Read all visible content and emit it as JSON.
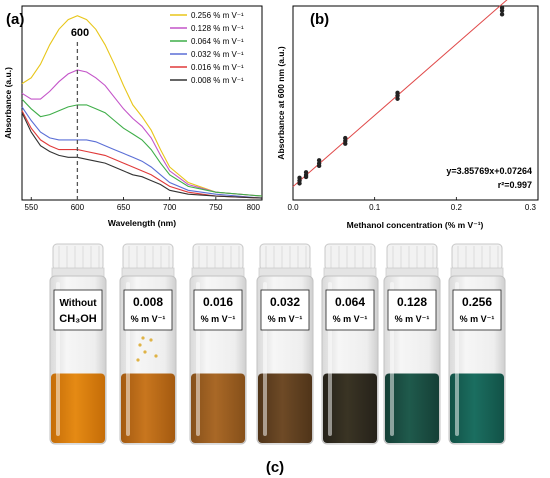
{
  "panel_labels": {
    "a": "(a)",
    "b": "(b)",
    "c": "(c)"
  },
  "colors": {
    "series": [
      "#e8c61a",
      "#c455c9",
      "#3fae49",
      "#5b6fd6",
      "#e03a3a",
      "#333333"
    ],
    "fit_line": "#e04a4a",
    "points": "#222222"
  },
  "chart_data": [
    {
      "type": "line",
      "xlabel": "Wavelength (nm)",
      "ylabel": "Absorbance (a.u.)",
      "xlim": [
        540,
        800
      ],
      "xticks": [
        "550",
        "600",
        "650",
        "700",
        "750",
        "800"
      ],
      "ylim": [
        0,
        1
      ],
      "y_ticks_shown": false,
      "grid": false,
      "legend_position": "top-right",
      "annotation": {
        "text": "600",
        "x": 600,
        "style": "vertical dashed line"
      },
      "x": [
        540,
        550,
        560,
        570,
        580,
        590,
        600,
        610,
        620,
        630,
        640,
        650,
        660,
        670,
        680,
        690,
        700,
        720,
        750,
        800
      ],
      "series": [
        {
          "name": "0.256 % m V⁻¹",
          "values": [
            0.6,
            0.63,
            0.7,
            0.8,
            0.88,
            0.93,
            0.95,
            0.93,
            0.88,
            0.8,
            0.7,
            0.59,
            0.49,
            0.43,
            0.36,
            0.26,
            0.17,
            0.09,
            0.04,
            0.02
          ]
        },
        {
          "name": "0.128 % m V⁻¹",
          "values": [
            0.55,
            0.52,
            0.52,
            0.56,
            0.61,
            0.65,
            0.67,
            0.66,
            0.63,
            0.59,
            0.53,
            0.47,
            0.42,
            0.38,
            0.32,
            0.23,
            0.15,
            0.08,
            0.04,
            0.02
          ]
        },
        {
          "name": "0.064 % m V⁻¹",
          "values": [
            0.52,
            0.47,
            0.43,
            0.44,
            0.46,
            0.48,
            0.49,
            0.49,
            0.47,
            0.45,
            0.41,
            0.37,
            0.34,
            0.31,
            0.26,
            0.19,
            0.13,
            0.07,
            0.04,
            0.02
          ]
        },
        {
          "name": "0.032 % m V⁻¹",
          "values": [
            0.48,
            0.41,
            0.35,
            0.32,
            0.31,
            0.31,
            0.31,
            0.31,
            0.3,
            0.28,
            0.26,
            0.24,
            0.22,
            0.2,
            0.17,
            0.13,
            0.09,
            0.05,
            0.03,
            0.01
          ]
        },
        {
          "name": "0.016 % m V⁻¹",
          "values": [
            0.46,
            0.37,
            0.31,
            0.28,
            0.26,
            0.26,
            0.26,
            0.25,
            0.24,
            0.23,
            0.21,
            0.19,
            0.17,
            0.15,
            0.13,
            0.1,
            0.07,
            0.04,
            0.02,
            0.01
          ]
        },
        {
          "name": "0.008 % m V⁻¹",
          "values": [
            0.45,
            0.35,
            0.28,
            0.25,
            0.23,
            0.22,
            0.22,
            0.21,
            0.2,
            0.19,
            0.17,
            0.15,
            0.13,
            0.12,
            0.1,
            0.08,
            0.05,
            0.03,
            0.02,
            0.01
          ]
        }
      ]
    },
    {
      "type": "scatter",
      "xlabel": "Methanol concentration (% m V⁻¹)",
      "ylabel": "Absorbance at 600 nm (a.u.)",
      "xlim": [
        0,
        0.3
      ],
      "xticks": [
        "0.0",
        "0.1",
        "0.2",
        "0.3"
      ],
      "ylim": [
        0,
        1.05
      ],
      "y_ticks_shown": false,
      "grid": false,
      "fit": {
        "slope": 3.85769,
        "intercept": 0.07264,
        "x_range": [
          0.0,
          0.264
        ]
      },
      "equation_text": "y=3.85769x+0.07264",
      "r2_text": "r²=0.997",
      "points": [
        {
          "x": 0.008,
          "y": [
            0.09,
            0.105,
            0.12
          ]
        },
        {
          "x": 0.016,
          "y": [
            0.125,
            0.135,
            0.15
          ]
        },
        {
          "x": 0.032,
          "y": [
            0.185,
            0.198,
            0.215
          ]
        },
        {
          "x": 0.064,
          "y": [
            0.305,
            0.32,
            0.335
          ]
        },
        {
          "x": 0.128,
          "y": [
            0.548,
            0.565,
            0.58
          ]
        },
        {
          "x": 0.256,
          "y": [
            1.005,
            1.025,
            1.04
          ]
        }
      ]
    }
  ],
  "vials": [
    {
      "line1": "Without",
      "line2": "CH₃OH",
      "liquid": "#e58a14",
      "liquid_dark": "#c56d08",
      "fill_level": 0.42
    },
    {
      "line1": "0.008",
      "line2": "% m V⁻¹",
      "liquid": "#c8761e",
      "liquid_dark": "#a45a10",
      "fill_level": 0.42
    },
    {
      "line1": "0.016",
      "line2": "% m V⁻¹",
      "liquid": "#a96826",
      "liquid_dark": "#86501a",
      "fill_level": 0.42
    },
    {
      "line1": "0.032",
      "line2": "% m V⁻¹",
      "liquid": "#6e4a26",
      "liquid_dark": "#4f3419",
      "fill_level": 0.42
    },
    {
      "line1": "0.064",
      "line2": "% m V⁻¹",
      "liquid": "#3a3424",
      "liquid_dark": "#26221a",
      "fill_level": 0.42
    },
    {
      "line1": "0.128",
      "line2": "% m V⁻¹",
      "liquid": "#1f5a4c",
      "liquid_dark": "#153f36",
      "fill_level": 0.42
    },
    {
      "line1": "0.256",
      "line2": "% m V⁻¹",
      "liquid": "#1b6e60",
      "liquid_dark": "#125247",
      "fill_level": 0.42
    }
  ]
}
